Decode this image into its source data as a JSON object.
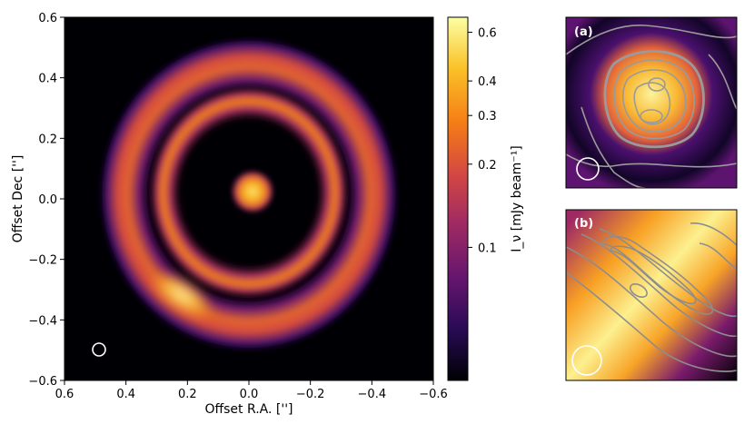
{
  "main_panel": {
    "xlabel": "Offset R.A. ['']",
    "ylabel": "Offset Dec ['']",
    "xticks": [
      "0.6",
      "0.4",
      "0.2",
      "0.0",
      "−0.2",
      "−0.4",
      "−0.6"
    ],
    "yticks": [
      "0.6",
      "0.4",
      "0.2",
      "0.0",
      "−0.2",
      "−0.4",
      "−0.6"
    ]
  },
  "colorbar": {
    "label": "I_ν [mJy beam⁻¹]",
    "scale": "log",
    "ticks": [
      "0.6",
      "0.4",
      "0.3",
      "0.2",
      "0.1"
    ],
    "colormap": [
      "#000004",
      "#280b54",
      "#65156e",
      "#9f2a63",
      "#d44842",
      "#f57d15",
      "#fac228",
      "#fcffa4"
    ]
  },
  "inset_a": {
    "label": "(a)"
  },
  "inset_b": {
    "label": "(b)"
  }
}
